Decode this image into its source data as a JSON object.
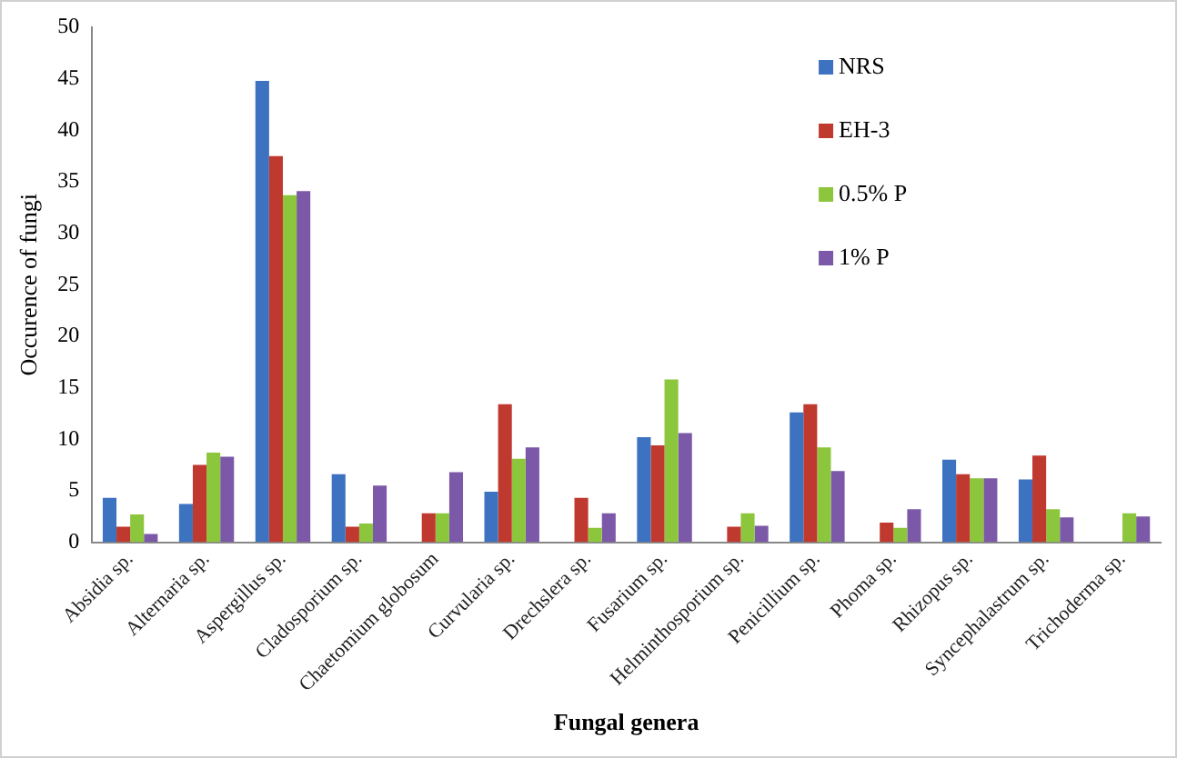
{
  "chart_data": {
    "type": "bar",
    "xlabel": "Fungal genera",
    "ylabel": "Occurence of fungi",
    "categories": [
      "Absidia sp.",
      "Alternaria sp.",
      "Aspergillus sp.",
      "Cladosporium sp.",
      "Chaetomium globosum",
      "Curvularia sp.",
      "Drechslera sp.",
      "Fusarium sp.",
      "Helminthosporium sp.",
      "Penicillium sp.",
      "Phoma sp.",
      "Rhizopus sp.",
      "Syncephalastrum sp.",
      "Trichoderma sp."
    ],
    "series": [
      {
        "name": "NRS",
        "color": "#3c72c0",
        "values": [
          4.3,
          3.7,
          44.8,
          6.6,
          0,
          4.9,
          0,
          10.2,
          0,
          12.6,
          0,
          8.0,
          6.1,
          0
        ]
      },
      {
        "name": "EH-3",
        "color": "#c0392f",
        "values": [
          1.5,
          7.5,
          37.5,
          1.5,
          2.8,
          13.4,
          4.3,
          9.4,
          1.5,
          13.4,
          1.9,
          6.6,
          8.4,
          0
        ]
      },
      {
        "name": "0.5% P",
        "color": "#8cc63c",
        "values": [
          2.7,
          8.7,
          33.7,
          1.8,
          2.8,
          8.1,
          1.4,
          15.8,
          2.8,
          9.2,
          1.4,
          6.2,
          3.2,
          2.8
        ]
      },
      {
        "name": "1% P",
        "color": "#7c59a8",
        "values": [
          0.8,
          8.3,
          34.1,
          5.5,
          6.8,
          9.2,
          2.8,
          10.6,
          1.6,
          6.9,
          3.2,
          6.2,
          2.4,
          2.5
        ]
      }
    ],
    "ylim": [
      0,
      50
    ],
    "yticks": [
      0,
      5,
      10,
      15,
      20,
      25,
      30,
      35,
      40,
      45,
      50
    ],
    "grid": false,
    "legend": "top right"
  }
}
